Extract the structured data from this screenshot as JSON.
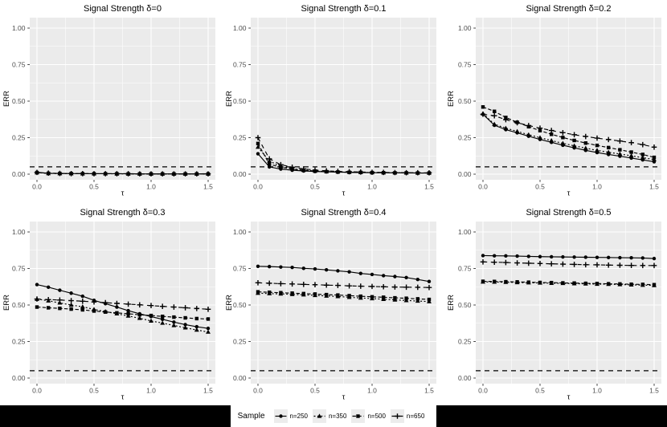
{
  "style": {
    "panel_fill": "#EBEBEB",
    "grid_color": "#FFFFFF",
    "tick_color": "#333333",
    "tick_label_color": "#4D4D4D",
    "text_color": "#000000",
    "series_color": "#000000",
    "legend_key_fill": "#ECECEC",
    "legend_strip_bg": "#000000",
    "legend_bg": "#FFFFFF"
  },
  "legend": {
    "title": "Sample",
    "entries": [
      {
        "label": "n=250",
        "marker": "circle",
        "linetype": "solid"
      },
      {
        "label": "n=350",
        "marker": "triangle",
        "linetype": "22"
      },
      {
        "label": "n=500",
        "marker": "square",
        "linetype": "42"
      },
      {
        "label": "n=650",
        "marker": "plus",
        "linetype": "44"
      }
    ]
  },
  "chart_data": [
    {
      "type": "line",
      "title": "Signal Strength δ=0",
      "xlabel": "τ",
      "ylabel": "ERR",
      "xlim": [
        0,
        1.5
      ],
      "ylim": [
        0,
        1
      ],
      "xticks": [
        0,
        0.5,
        1.0,
        1.5
      ],
      "xtick_labels": [
        "0.0",
        "0.5",
        "1.0",
        "1.5"
      ],
      "yticks": [
        0,
        0.25,
        0.5,
        0.75,
        1.0
      ],
      "ytick_labels": [
        "0.00",
        "0.25",
        "0.50",
        "0.75",
        "1.00"
      ],
      "hline": 0.05,
      "x": [
        0,
        0.1,
        0.2,
        0.3,
        0.4,
        0.5,
        0.6,
        0.7,
        0.8,
        0.9,
        1.0,
        1.1,
        1.2,
        1.3,
        1.4,
        1.5
      ],
      "series": [
        {
          "name": "n=250",
          "marker": "circle",
          "linetype": "solid",
          "values": [
            0.013,
            0.006,
            0.005,
            0.004,
            0.004,
            0.003,
            0.003,
            0.003,
            0.003,
            0.002,
            0.002,
            0.002,
            0.002,
            0.002,
            0.002,
            0.003
          ]
        },
        {
          "name": "n=350",
          "marker": "triangle",
          "linetype": "22",
          "values": [
            0.01,
            0.005,
            0.004,
            0.004,
            0.003,
            0.003,
            0.003,
            0.002,
            0.002,
            0.002,
            0.002,
            0.002,
            0.002,
            0.002,
            0.002,
            0.002
          ]
        },
        {
          "name": "n=500",
          "marker": "square",
          "linetype": "42",
          "values": [
            0.011,
            0.006,
            0.005,
            0.004,
            0.003,
            0.003,
            0.003,
            0.003,
            0.002,
            0.002,
            0.002,
            0.002,
            0.002,
            0.002,
            0.002,
            0.002
          ]
        },
        {
          "name": "n=650",
          "marker": "plus",
          "linetype": "44",
          "values": [
            0.012,
            0.007,
            0.005,
            0.004,
            0.004,
            0.003,
            0.003,
            0.003,
            0.003,
            0.002,
            0.002,
            0.002,
            0.002,
            0.002,
            0.002,
            0.002
          ]
        }
      ]
    },
    {
      "type": "line",
      "title": "Signal Strength δ=0.1",
      "xlabel": "τ",
      "ylabel": "ERR",
      "xlim": [
        0,
        1.5
      ],
      "ylim": [
        0,
        1
      ],
      "xticks": [
        0,
        0.5,
        1.0,
        1.5
      ],
      "xtick_labels": [
        "0.0",
        "0.5",
        "1.0",
        "1.5"
      ],
      "yticks": [
        0,
        0.25,
        0.5,
        0.75,
        1.0
      ],
      "ytick_labels": [
        "0.00",
        "0.25",
        "0.50",
        "0.75",
        "1.00"
      ],
      "hline": 0.05,
      "x": [
        0,
        0.1,
        0.2,
        0.3,
        0.4,
        0.5,
        0.6,
        0.7,
        0.8,
        0.9,
        1.0,
        1.1,
        1.2,
        1.3,
        1.4,
        1.5
      ],
      "series": [
        {
          "name": "n=250",
          "marker": "circle",
          "linetype": "solid",
          "values": [
            0.14,
            0.05,
            0.035,
            0.027,
            0.022,
            0.018,
            0.016,
            0.014,
            0.012,
            0.011,
            0.01,
            0.009,
            0.009,
            0.008,
            0.008,
            0.007
          ]
        },
        {
          "name": "n=350",
          "marker": "triangle",
          "linetype": "22",
          "values": [
            0.185,
            0.09,
            0.053,
            0.038,
            0.028,
            0.022,
            0.018,
            0.016,
            0.014,
            0.012,
            0.011,
            0.01,
            0.01,
            0.009,
            0.009,
            0.008
          ]
        },
        {
          "name": "n=500",
          "marker": "square",
          "linetype": "42",
          "values": [
            0.21,
            0.068,
            0.048,
            0.035,
            0.026,
            0.021,
            0.017,
            0.015,
            0.013,
            0.012,
            0.011,
            0.01,
            0.009,
            0.009,
            0.008,
            0.008
          ]
        },
        {
          "name": "n=650",
          "marker": "plus",
          "linetype": "44",
          "values": [
            0.25,
            0.105,
            0.065,
            0.048,
            0.036,
            0.028,
            0.023,
            0.019,
            0.017,
            0.015,
            0.013,
            0.012,
            0.011,
            0.01,
            0.01,
            0.009
          ]
        }
      ]
    },
    {
      "type": "line",
      "title": "Signal Strength δ=0.2",
      "xlabel": "τ",
      "ylabel": "ERR",
      "xlim": [
        0,
        1.5
      ],
      "ylim": [
        0,
        1
      ],
      "xticks": [
        0,
        0.5,
        1.0,
        1.5
      ],
      "xtick_labels": [
        "0.0",
        "0.5",
        "1.0",
        "1.5"
      ],
      "yticks": [
        0,
        0.25,
        0.5,
        0.75,
        1.0
      ],
      "ytick_labels": [
        "0.00",
        "0.25",
        "0.50",
        "0.75",
        "1.00"
      ],
      "hline": 0.05,
      "x": [
        0,
        0.1,
        0.2,
        0.3,
        0.4,
        0.5,
        0.6,
        0.7,
        0.8,
        0.9,
        1.0,
        1.1,
        1.2,
        1.3,
        1.4,
        1.5
      ],
      "series": [
        {
          "name": "n=250",
          "marker": "circle",
          "linetype": "solid",
          "values": [
            0.41,
            0.335,
            0.305,
            0.283,
            0.26,
            0.238,
            0.218,
            0.198,
            0.18,
            0.163,
            0.148,
            0.135,
            0.123,
            0.11,
            0.098,
            0.085
          ]
        },
        {
          "name": "n=350",
          "marker": "triangle",
          "linetype": "22",
          "values": [
            0.415,
            0.342,
            0.315,
            0.293,
            0.27,
            0.25,
            0.23,
            0.211,
            0.194,
            0.178,
            0.163,
            0.15,
            0.138,
            0.126,
            0.113,
            0.1
          ]
        },
        {
          "name": "n=500",
          "marker": "square",
          "linetype": "42",
          "values": [
            0.46,
            0.43,
            0.388,
            0.355,
            0.325,
            0.298,
            0.273,
            0.251,
            0.231,
            0.213,
            0.197,
            0.182,
            0.167,
            0.151,
            0.135,
            0.115
          ]
        },
        {
          "name": "n=650",
          "marker": "plus",
          "linetype": "44",
          "values": [
            0.41,
            0.4,
            0.373,
            0.352,
            0.333,
            0.315,
            0.299,
            0.284,
            0.27,
            0.258,
            0.247,
            0.237,
            0.227,
            0.216,
            0.202,
            0.185
          ]
        }
      ]
    },
    {
      "type": "line",
      "title": "Signal Strength δ=0.3",
      "xlabel": "τ",
      "ylabel": "ERR",
      "xlim": [
        0,
        1.5
      ],
      "ylim": [
        0,
        1
      ],
      "xticks": [
        0,
        0.5,
        1.0,
        1.5
      ],
      "xtick_labels": [
        "0.0",
        "0.5",
        "1.0",
        "1.5"
      ],
      "yticks": [
        0,
        0.25,
        0.5,
        0.75,
        1.0
      ],
      "ytick_labels": [
        "0.00",
        "0.25",
        "0.50",
        "0.75",
        "1.00"
      ],
      "hline": 0.05,
      "x": [
        0,
        0.1,
        0.2,
        0.3,
        0.4,
        0.5,
        0.6,
        0.7,
        0.8,
        0.9,
        1.0,
        1.1,
        1.2,
        1.3,
        1.4,
        1.5
      ],
      "series": [
        {
          "name": "n=250",
          "marker": "circle",
          "linetype": "solid",
          "values": [
            0.64,
            0.622,
            0.601,
            0.581,
            0.56,
            0.532,
            0.509,
            0.486,
            0.461,
            0.44,
            0.421,
            0.402,
            0.383,
            0.366,
            0.351,
            0.34
          ]
        },
        {
          "name": "n=350",
          "marker": "triangle",
          "linetype": "22",
          "values": [
            0.54,
            0.529,
            0.514,
            0.5,
            0.488,
            0.47,
            0.455,
            0.44,
            0.425,
            0.409,
            0.391,
            0.376,
            0.36,
            0.344,
            0.329,
            0.315
          ]
        },
        {
          "name": "n=500",
          "marker": "square",
          "linetype": "42",
          "values": [
            0.486,
            0.481,
            0.477,
            0.472,
            0.467,
            0.459,
            0.452,
            0.446,
            0.44,
            0.433,
            0.428,
            0.422,
            0.417,
            0.412,
            0.407,
            0.404
          ]
        },
        {
          "name": "n=650",
          "marker": "plus",
          "linetype": "44",
          "values": [
            0.541,
            0.537,
            0.534,
            0.53,
            0.526,
            0.521,
            0.516,
            0.511,
            0.506,
            0.501,
            0.496,
            0.491,
            0.486,
            0.481,
            0.476,
            0.471
          ]
        }
      ]
    },
    {
      "type": "line",
      "title": "Signal Strength δ=0.4",
      "xlabel": "τ",
      "ylabel": "ERR",
      "xlim": [
        0,
        1.5
      ],
      "ylim": [
        0,
        1
      ],
      "xticks": [
        0,
        0.5,
        1.0,
        1.5
      ],
      "xtick_labels": [
        "0.0",
        "0.5",
        "1.0",
        "1.5"
      ],
      "yticks": [
        0,
        0.25,
        0.5,
        0.75,
        1.0
      ],
      "ytick_labels": [
        "0.00",
        "0.25",
        "0.50",
        "0.75",
        "1.00"
      ],
      "hline": 0.05,
      "x": [
        0,
        0.1,
        0.2,
        0.3,
        0.4,
        0.5,
        0.6,
        0.7,
        0.8,
        0.9,
        1.0,
        1.1,
        1.2,
        1.3,
        1.4,
        1.5
      ],
      "series": [
        {
          "name": "n=250",
          "marker": "circle",
          "linetype": "solid",
          "values": [
            0.765,
            0.763,
            0.76,
            0.757,
            0.751,
            0.747,
            0.741,
            0.734,
            0.727,
            0.716,
            0.709,
            0.701,
            0.695,
            0.688,
            0.675,
            0.661
          ]
        },
        {
          "name": "n=350",
          "marker": "triangle",
          "linetype": "22",
          "values": [
            0.581,
            0.578,
            0.576,
            0.573,
            0.57,
            0.566,
            0.562,
            0.558,
            0.553,
            0.548,
            0.544,
            0.539,
            0.535,
            0.531,
            0.527,
            0.523
          ]
        },
        {
          "name": "n=500",
          "marker": "square",
          "linetype": "42",
          "values": [
            0.59,
            0.587,
            0.584,
            0.581,
            0.578,
            0.575,
            0.571,
            0.568,
            0.564,
            0.56,
            0.556,
            0.553,
            0.549,
            0.546,
            0.542,
            0.538
          ]
        },
        {
          "name": "n=650",
          "marker": "plus",
          "linetype": "44",
          "values": [
            0.652,
            0.649,
            0.646,
            0.644,
            0.641,
            0.639,
            0.636,
            0.634,
            0.631,
            0.629,
            0.627,
            0.625,
            0.623,
            0.622,
            0.621,
            0.62
          ]
        }
      ]
    },
    {
      "type": "line",
      "title": "Signal Strength δ=0.5",
      "xlabel": "τ",
      "ylabel": "ERR",
      "xlim": [
        0,
        1.5
      ],
      "ylim": [
        0,
        1
      ],
      "xticks": [
        0,
        0.5,
        1.0,
        1.5
      ],
      "xtick_labels": [
        "0.0",
        "0.5",
        "1.0",
        "1.5"
      ],
      "yticks": [
        0,
        0.25,
        0.5,
        0.75,
        1.0
      ],
      "ytick_labels": [
        "0.00",
        "0.25",
        "0.50",
        "0.75",
        "1.00"
      ],
      "hline": 0.05,
      "x": [
        0,
        0.1,
        0.2,
        0.3,
        0.4,
        0.5,
        0.6,
        0.7,
        0.8,
        0.9,
        1.0,
        1.1,
        1.2,
        1.3,
        1.4,
        1.5
      ],
      "series": [
        {
          "name": "n=250",
          "marker": "circle",
          "linetype": "solid",
          "values": [
            0.838,
            0.837,
            0.836,
            0.835,
            0.833,
            0.831,
            0.83,
            0.829,
            0.828,
            0.827,
            0.826,
            0.825,
            0.824,
            0.823,
            0.822,
            0.818
          ]
        },
        {
          "name": "n=350",
          "marker": "triangle",
          "linetype": "22",
          "values": [
            0.658,
            0.657,
            0.656,
            0.654,
            0.652,
            0.651,
            0.649,
            0.648,
            0.646,
            0.645,
            0.643,
            0.642,
            0.64,
            0.638,
            0.636,
            0.634
          ]
        },
        {
          "name": "n=500",
          "marker": "square",
          "linetype": "42",
          "values": [
            0.662,
            0.661,
            0.659,
            0.658,
            0.656,
            0.654,
            0.653,
            0.651,
            0.65,
            0.648,
            0.647,
            0.645,
            0.644,
            0.642,
            0.641,
            0.639
          ]
        },
        {
          "name": "n=650",
          "marker": "plus",
          "linetype": "44",
          "values": [
            0.795,
            0.793,
            0.791,
            0.788,
            0.786,
            0.784,
            0.782,
            0.78,
            0.778,
            0.776,
            0.775,
            0.773,
            0.772,
            0.771,
            0.77,
            0.77
          ]
        }
      ]
    }
  ]
}
